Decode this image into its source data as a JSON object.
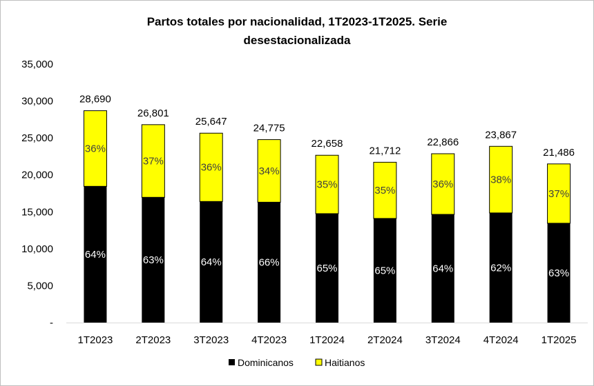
{
  "chart_data": {
    "type": "bar",
    "stacked": true,
    "title": "Partos totales por nacionalidad, 1T2023-1T2025. Serie desestacionalizada",
    "title_lines": [
      "Partos totales por nacionalidad, 1T2023-1T2025. Serie",
      "desestacionalizada"
    ],
    "categories": [
      "1T2023",
      "2T2023",
      "3T2023",
      "4T2023",
      "1T2024",
      "2T2024",
      "3T2024",
      "4T2024",
      "1T2025"
    ],
    "totals": [
      28690,
      26801,
      25647,
      24775,
      22658,
      21712,
      22866,
      23867,
      21486
    ],
    "total_labels": [
      "28,690",
      "26,801",
      "25,647",
      "24,775",
      "22,658",
      "21,712",
      "22,866",
      "23,867",
      "21,486"
    ],
    "series": [
      {
        "name": "Dominicanos",
        "color": "#000000",
        "values": [
          18450,
          16960,
          16400,
          16300,
          14750,
          14100,
          14650,
          14850,
          13450
        ],
        "percent_labels": [
          "64%",
          "63%",
          "64%",
          "66%",
          "65%",
          "65%",
          "64%",
          "62%",
          "63%"
        ]
      },
      {
        "name": "Haitianos",
        "color": "#ffff00",
        "values": [
          10240,
          9841,
          9247,
          8475,
          7908,
          7612,
          8216,
          9017,
          8036
        ],
        "percent_labels": [
          "36%",
          "37%",
          "36%",
          "34%",
          "35%",
          "35%",
          "36%",
          "38%",
          "37%"
        ]
      }
    ],
    "ylim": [
      0,
      35000
    ],
    "yticks": [
      0,
      5000,
      10000,
      15000,
      20000,
      25000,
      30000,
      35000
    ],
    "ytick_labels": [
      "-",
      "5,000",
      "10,000",
      "15,000",
      "20,000",
      "25,000",
      "30,000",
      "35,000"
    ],
    "xlabel": "",
    "ylabel": "",
    "grid": false,
    "legend_position": "bottom-center"
  }
}
